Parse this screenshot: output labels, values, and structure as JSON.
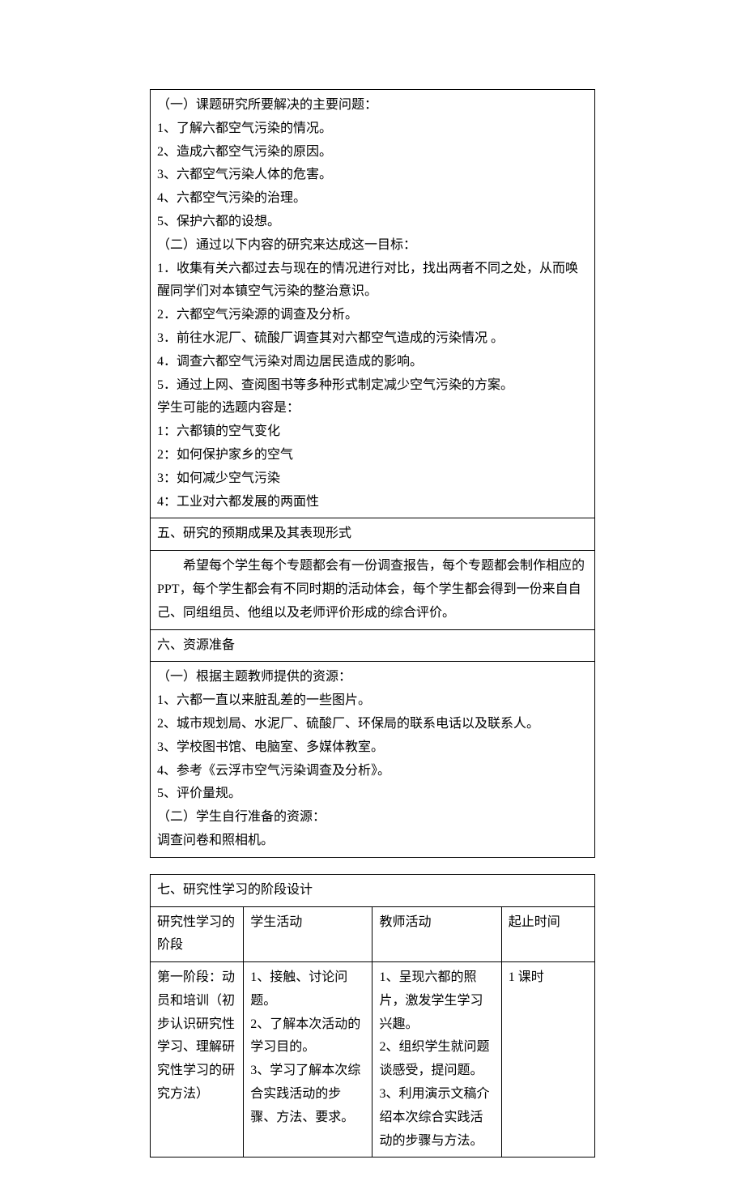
{
  "section1": {
    "lines": [
      "（一）课题研究所要解决的主要问题：",
      "1、了解六都空气污染的情况。",
      "2、造成六都空气污染的原因。",
      "3、六都空气污染人体的危害。",
      "4、六都空气污染的治理。",
      "5、保护六都的设想。",
      "（二）通过以下内容的研究来达成这一目标：",
      "1．收集有关六都过去与现在的情况进行对比，找出两者不同之处，从而唤醒同学们对本镇空气污染的整治意识。",
      "2．六都空气污染源的调查及分析。",
      "3．前往水泥厂、硫酸厂调查其对六都空气造成的污染情况 。",
      "4．调查六都空气污染对周边居民造成的影响。",
      "5．通过上网、查阅图书等多种形式制定减少空气污染的方案。",
      "学生可能的选题内容是：",
      "1：六都镇的空气变化",
      "2：如何保护家乡的空气",
      "3：如何减少空气污染",
      "4：工业对六都发展的两面性"
    ]
  },
  "section2_header": "五、研究的预期成果及其表现形式",
  "section2_body": "希望每个学生每个专题都会有一份调查报告，每个专题都会制作相应的 PPT，每个学生都会有不同时期的活动体会，每个学生都会得到一份来自自己、同组组员、他组以及老师评价形成的综合评价。",
  "section3_header": "六、资源准备",
  "section3": {
    "lines": [
      "（一）根据主题教师提供的资源：",
      "1、六都一直以来脏乱差的一些图片。",
      "2、城市规划局、水泥厂、硫酸厂、环保局的联系电话以及联系人。",
      "3、学校图书馆、电脑室、多媒体教室。",
      "4、参考《云浮市空气污染调查及分析》。",
      "5、评价量规。",
      "（二）学生自行准备的资源：",
      "调查问卷和照相机。"
    ]
  },
  "phase_table": {
    "title": "七、研究性学习的阶段设计",
    "headers": [
      "研究性学习的阶段",
      "学生活动",
      "教师活动",
      "起止时间"
    ],
    "row1": {
      "col1": "第一阶段：动员和培训（初步认识研究性学习、理解研究性学习的研究方法）",
      "col2": "1、接触、讨论问题。\n2、了解本次活动的学习目的。\n3、学习了解本次综合实践活动的步骤、方法、要求。",
      "col3": "1、呈现六都的照片，激发学生学习兴趣。\n2、组织学生就问题谈感受，提问题。\n3、利用演示文稿介绍本次综合实践活动的步骤与方法。",
      "col4": "1 课时"
    }
  }
}
